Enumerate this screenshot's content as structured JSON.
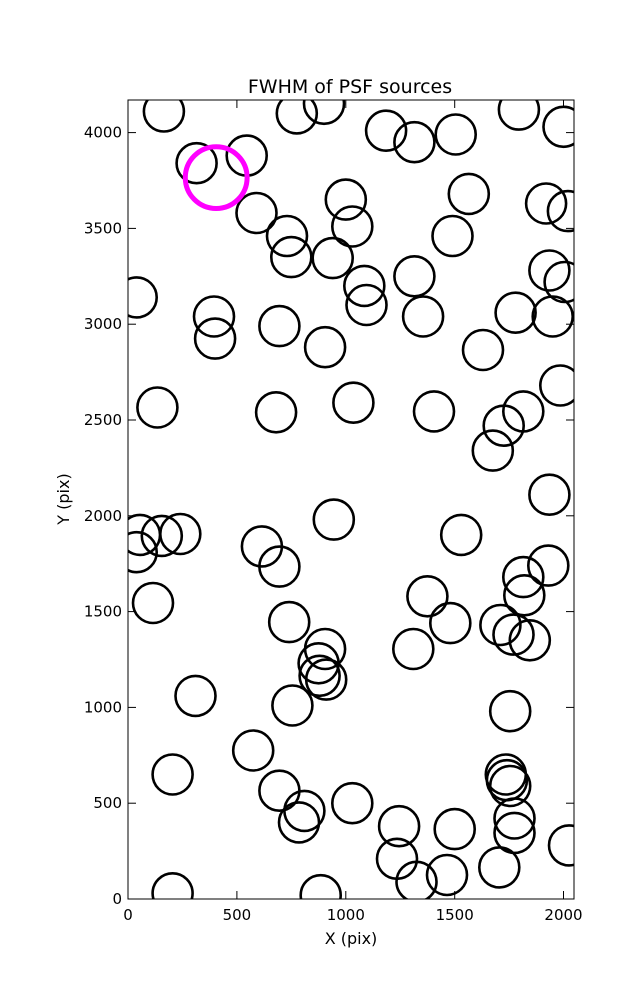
{
  "chart_data": {
    "type": "scatter",
    "title": "FWHM of PSF sources",
    "xlabel": "X (pix)",
    "ylabel": "Y (pix)",
    "xlim": [
      0,
      2048
    ],
    "ylim": [
      0,
      4170
    ],
    "xticks": [
      0,
      500,
      1000,
      1500,
      2000
    ],
    "yticks": [
      0,
      500,
      1000,
      1500,
      2000,
      2500,
      3000,
      3500,
      4000
    ],
    "xtick_labels": [
      "0",
      "500",
      "1000",
      "1500",
      "2000"
    ],
    "ytick_labels": [
      "0",
      "500",
      "1000",
      "1500",
      "2000",
      "2500",
      "3000",
      "3500",
      "4000"
    ],
    "grid": false,
    "marker_radius": 92,
    "highlight_radius": 142,
    "colors": {
      "marker": "#000000",
      "highlight": "#ff00ff"
    },
    "highlight": {
      "x": 405,
      "y": 3765
    },
    "series": [
      {
        "points": [
          [
            165,
            4110
          ],
          [
            315,
            3840
          ],
          [
            545,
            3880
          ],
          [
            590,
            3580
          ],
          [
            775,
            4100
          ],
          [
            900,
            4150
          ],
          [
            1185,
            4010
          ],
          [
            1315,
            3950
          ],
          [
            1505,
            3990
          ],
          [
            1795,
            4120
          ],
          [
            2000,
            4030
          ],
          [
            1000,
            3650
          ],
          [
            1030,
            3510
          ],
          [
            1565,
            3680
          ],
          [
            1920,
            3630
          ],
          [
            2020,
            3590
          ],
          [
            730,
            3460
          ],
          [
            750,
            3350
          ],
          [
            940,
            3345
          ],
          [
            1490,
            3460
          ],
          [
            1085,
            3200
          ],
          [
            1095,
            3100
          ],
          [
            1315,
            3250
          ],
          [
            1935,
            3280
          ],
          [
            2005,
            3220
          ],
          [
            40,
            3140
          ],
          [
            395,
            3040
          ],
          [
            400,
            2925
          ],
          [
            695,
            2990
          ],
          [
            905,
            2880
          ],
          [
            1355,
            3040
          ],
          [
            1630,
            2865
          ],
          [
            1780,
            3060
          ],
          [
            1950,
            3040
          ],
          [
            1985,
            2680
          ],
          [
            135,
            2565
          ],
          [
            680,
            2540
          ],
          [
            1035,
            2590
          ],
          [
            1405,
            2545
          ],
          [
            1725,
            2470
          ],
          [
            1815,
            2545
          ],
          [
            1675,
            2340
          ],
          [
            1935,
            2110
          ],
          [
            945,
            1980
          ],
          [
            1530,
            1900
          ],
          [
            55,
            1900
          ],
          [
            40,
            1810
          ],
          [
            155,
            1895
          ],
          [
            240,
            1905
          ],
          [
            615,
            1840
          ],
          [
            695,
            1735
          ],
          [
            1815,
            1680
          ],
          [
            1930,
            1740
          ],
          [
            1820,
            1585
          ],
          [
            1375,
            1580
          ],
          [
            115,
            1545
          ],
          [
            740,
            1445
          ],
          [
            1480,
            1440
          ],
          [
            1710,
            1430
          ],
          [
            1770,
            1380
          ],
          [
            1845,
            1350
          ],
          [
            1310,
            1305
          ],
          [
            905,
            1305
          ],
          [
            875,
            1230
          ],
          [
            880,
            1165
          ],
          [
            910,
            1145
          ],
          [
            310,
            1060
          ],
          [
            755,
            1010
          ],
          [
            1755,
            980
          ],
          [
            575,
            775
          ],
          [
            1735,
            650
          ],
          [
            1740,
            620
          ],
          [
            1755,
            590
          ],
          [
            205,
            650
          ],
          [
            695,
            565
          ],
          [
            810,
            460
          ],
          [
            785,
            400
          ],
          [
            1030,
            500
          ],
          [
            1245,
            380
          ],
          [
            1235,
            210
          ],
          [
            1500,
            365
          ],
          [
            1775,
            420
          ],
          [
            1775,
            345
          ],
          [
            1705,
            165
          ],
          [
            2025,
            280
          ],
          [
            1325,
            90
          ],
          [
            1465,
            125
          ],
          [
            205,
            30
          ],
          [
            885,
            20
          ]
        ]
      }
    ]
  }
}
